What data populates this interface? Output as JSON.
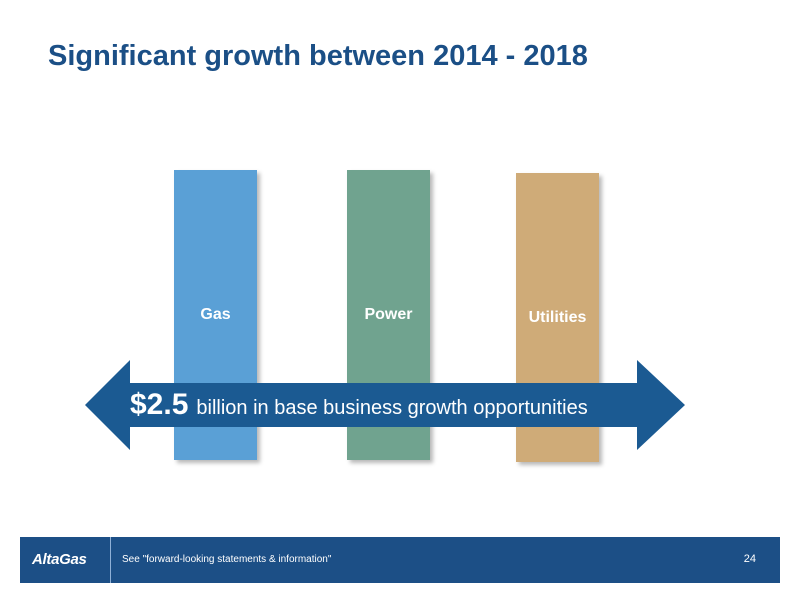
{
  "slide": {
    "title": "Significant growth between 2014 - 2018"
  },
  "columns": [
    {
      "label": "Gas",
      "color": "#5aa0d6"
    },
    {
      "label": "Power",
      "color": "#70a38f"
    },
    {
      "label": "Utilities",
      "color": "#cfab78"
    }
  ],
  "arrow": {
    "amount": "$2.5",
    "description": "billion in base business growth opportunities",
    "color": "#1b5a92"
  },
  "footer": {
    "logo": "AltaGas",
    "note": "See \"forward-looking statements & information\"",
    "page_number": "24"
  }
}
